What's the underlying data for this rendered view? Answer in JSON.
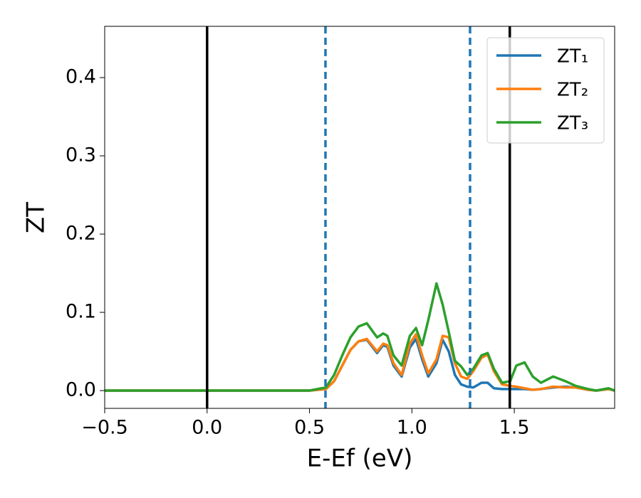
{
  "chart_data": {
    "type": "line",
    "xlabel": "E-Ef (eV)",
    "ylabel": "ZT",
    "x": [
      -0.5,
      0.5,
      0.58,
      0.62,
      0.66,
      0.7,
      0.74,
      0.78,
      0.83,
      0.86,
      0.88,
      0.91,
      0.95,
      0.99,
      1.02,
      1.05,
      1.08,
      1.12,
      1.15,
      1.18,
      1.21,
      1.24,
      1.27,
      1.3,
      1.34,
      1.37,
      1.4,
      1.44,
      1.48,
      1.51,
      1.55,
      1.59,
      1.63,
      1.69,
      1.75,
      1.8,
      1.86,
      1.9,
      1.96,
      1.99
    ],
    "series": [
      {
        "name": "ZT₁",
        "color": "#1f77b4",
        "values": [
          0,
          0,
          0.002,
          0.012,
          0.032,
          0.052,
          0.063,
          0.065,
          0.048,
          0.058,
          0.056,
          0.032,
          0.018,
          0.055,
          0.066,
          0.04,
          0.018,
          0.035,
          0.065,
          0.05,
          0.02,
          0.008,
          0.005,
          0.004,
          0.01,
          0.01,
          0.003,
          0.002,
          0.002,
          0.002,
          0.002,
          0.001,
          0.002,
          0.004,
          0.005,
          0.004,
          0.001,
          0,
          0.002,
          0
        ]
      },
      {
        "name": "ZT₂",
        "color": "#ff7f0e",
        "values": [
          0,
          0,
          0.002,
          0.012,
          0.032,
          0.052,
          0.063,
          0.066,
          0.05,
          0.06,
          0.058,
          0.035,
          0.02,
          0.06,
          0.072,
          0.045,
          0.022,
          0.04,
          0.07,
          0.068,
          0.035,
          0.018,
          0.015,
          0.025,
          0.042,
          0.046,
          0.025,
          0.008,
          0.006,
          0.005,
          0.003,
          0.001,
          0.002,
          0.005,
          0.004,
          0.004,
          0.001,
          0,
          0.002,
          0
        ]
      },
      {
        "name": "ZT₃",
        "color": "#2ca02c",
        "values": [
          0,
          0,
          0.004,
          0.02,
          0.045,
          0.068,
          0.082,
          0.086,
          0.068,
          0.073,
          0.07,
          0.045,
          0.032,
          0.07,
          0.08,
          0.058,
          0.09,
          0.137,
          0.11,
          0.075,
          0.038,
          0.031,
          0.02,
          0.028,
          0.045,
          0.048,
          0.028,
          0.01,
          0.012,
          0.032,
          0.036,
          0.018,
          0.01,
          0.018,
          0.012,
          0.006,
          0.002,
          0,
          0.003,
          0
        ]
      }
    ],
    "vlines": [
      {
        "x": 0,
        "color": "#000000",
        "style": "solid"
      },
      {
        "x": 1.478,
        "color": "#000000",
        "style": "solid"
      },
      {
        "x": 0.578,
        "color": "#1f77b4",
        "style": "dashed"
      },
      {
        "x": 1.284,
        "color": "#1f77b4",
        "style": "dashed"
      }
    ],
    "xlim": [
      -0.5,
      1.99
    ],
    "ylim": [
      -0.0227,
      0.4655
    ],
    "xticks": [
      {
        "value": -0.5,
        "label": "−0.5"
      },
      {
        "value": 0,
        "label": "0.0"
      },
      {
        "value": 0.5,
        "label": "0.5"
      },
      {
        "value": 1,
        "label": "1.0"
      },
      {
        "value": 1.5,
        "label": "1.5"
      }
    ],
    "yticks": [
      {
        "value": 0,
        "label": "0.0"
      },
      0.1,
      0.2,
      0.3,
      0.4
    ],
    "legend": "upper right",
    "grid": false
  }
}
